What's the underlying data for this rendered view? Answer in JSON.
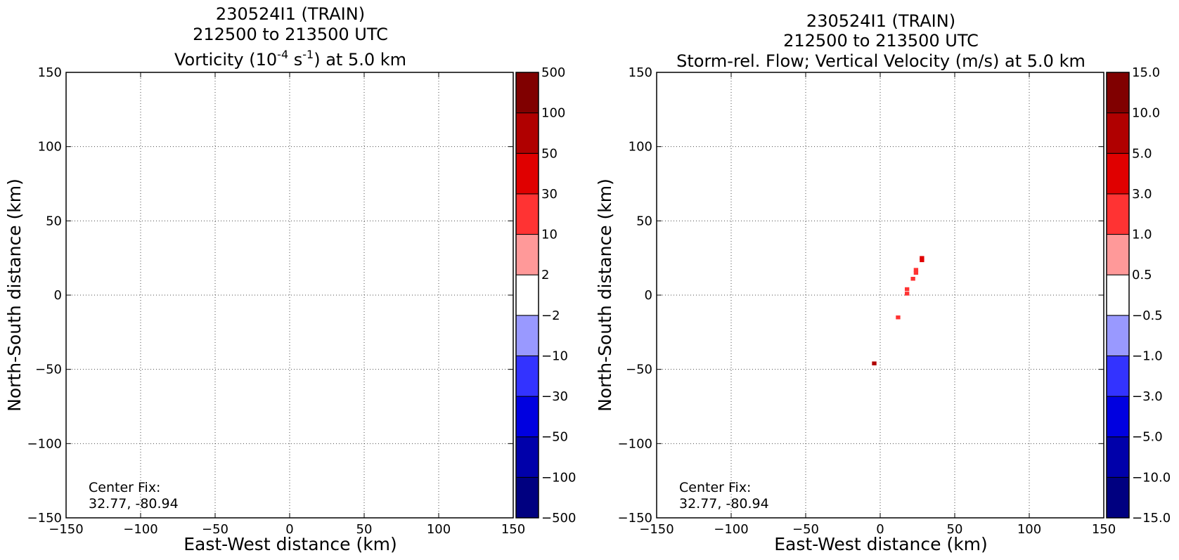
{
  "chart_data": [
    {
      "type": "heatmap",
      "title_lines": [
        "230524I1 (TRAIN)",
        "212500 to 213500 UTC"
      ],
      "title_var_pre": "Vorticity (10",
      "title_var_exp": "-4",
      "title_var_mid": " s",
      "title_var_exp2": "-1",
      "title_var_post": ") at 5.0 km",
      "xlabel": "East-West distance (km)",
      "ylabel": "North-South distance (km)",
      "xlim": [
        -150,
        150
      ],
      "ylim": [
        -150,
        150
      ],
      "xticks": [
        -150,
        -100,
        -50,
        0,
        50,
        100,
        150
      ],
      "yticks": [
        -150,
        -100,
        -50,
        0,
        50,
        100,
        150
      ],
      "xtick_labels": [
        "−150",
        "−100",
        "−50",
        "0",
        "50",
        "100",
        "150"
      ],
      "ytick_labels": [
        "−150",
        "−100",
        "−50",
        "0",
        "50",
        "100",
        "150"
      ],
      "grid": true,
      "annotation_lines": [
        "Center Fix:",
        "32.77, -80.94"
      ],
      "colorbar": {
        "labels": [
          "−500",
          "−100",
          "−50",
          "−30",
          "−10",
          "−2",
          "2",
          "10",
          "30",
          "50",
          "100",
          "500"
        ],
        "colors": [
          "#000080",
          "#0000aa",
          "#0000e0",
          "#3333ff",
          "#9999ff",
          "#ffffff",
          "#ff9999",
          "#ff3333",
          "#e00000",
          "#b00000",
          "#800000"
        ]
      },
      "cells": []
    },
    {
      "type": "heatmap",
      "title_lines": [
        "230524I1 (TRAIN)",
        "212500 to 213500 UTC",
        "Storm-rel. Flow; Vertical Velocity (m/s) at 5.0 km"
      ],
      "xlabel": "East-West distance (km)",
      "ylabel": "North-South distance (km)",
      "xlim": [
        -150,
        150
      ],
      "ylim": [
        -150,
        150
      ],
      "xticks": [
        -150,
        -100,
        -50,
        0,
        50,
        100,
        150
      ],
      "yticks": [
        -150,
        -100,
        -50,
        0,
        50,
        100,
        150
      ],
      "xtick_labels": [
        "−150",
        "−100",
        "−50",
        "0",
        "50",
        "100",
        "150"
      ],
      "ytick_labels": [
        "−150",
        "−100",
        "−50",
        "0",
        "50",
        "100",
        "150"
      ],
      "grid": true,
      "annotation_lines": [
        "Center Fix:",
        "32.77, -80.94"
      ],
      "colorbar": {
        "labels": [
          "−15.0",
          "−10.0",
          "−5.0",
          "−3.0",
          "−1.0",
          "−0.5",
          "0.5",
          "1.0",
          "3.0",
          "5.0",
          "10.0",
          "15.0"
        ],
        "colors": [
          "#000080",
          "#0000aa",
          "#0000e0",
          "#3333ff",
          "#9999ff",
          "#ffffff",
          "#ff9999",
          "#ff3333",
          "#e00000",
          "#b00000",
          "#800000"
        ]
      },
      "cells": [
        {
          "x": 28,
          "y": 25,
          "value": 3.0
        },
        {
          "x": 28,
          "y": 23.5,
          "value": 3.0
        },
        {
          "x": 24,
          "y": 17,
          "value": 1.0
        },
        {
          "x": 24,
          "y": 15,
          "value": 1.0
        },
        {
          "x": 22,
          "y": 11,
          "value": 1.0
        },
        {
          "x": 18,
          "y": 4,
          "value": 1.0
        },
        {
          "x": 18,
          "y": 1,
          "value": 1.0
        },
        {
          "x": 12,
          "y": -15,
          "value": 1.0
        },
        {
          "x": -4,
          "y": -46,
          "value": 5.0
        }
      ]
    }
  ]
}
